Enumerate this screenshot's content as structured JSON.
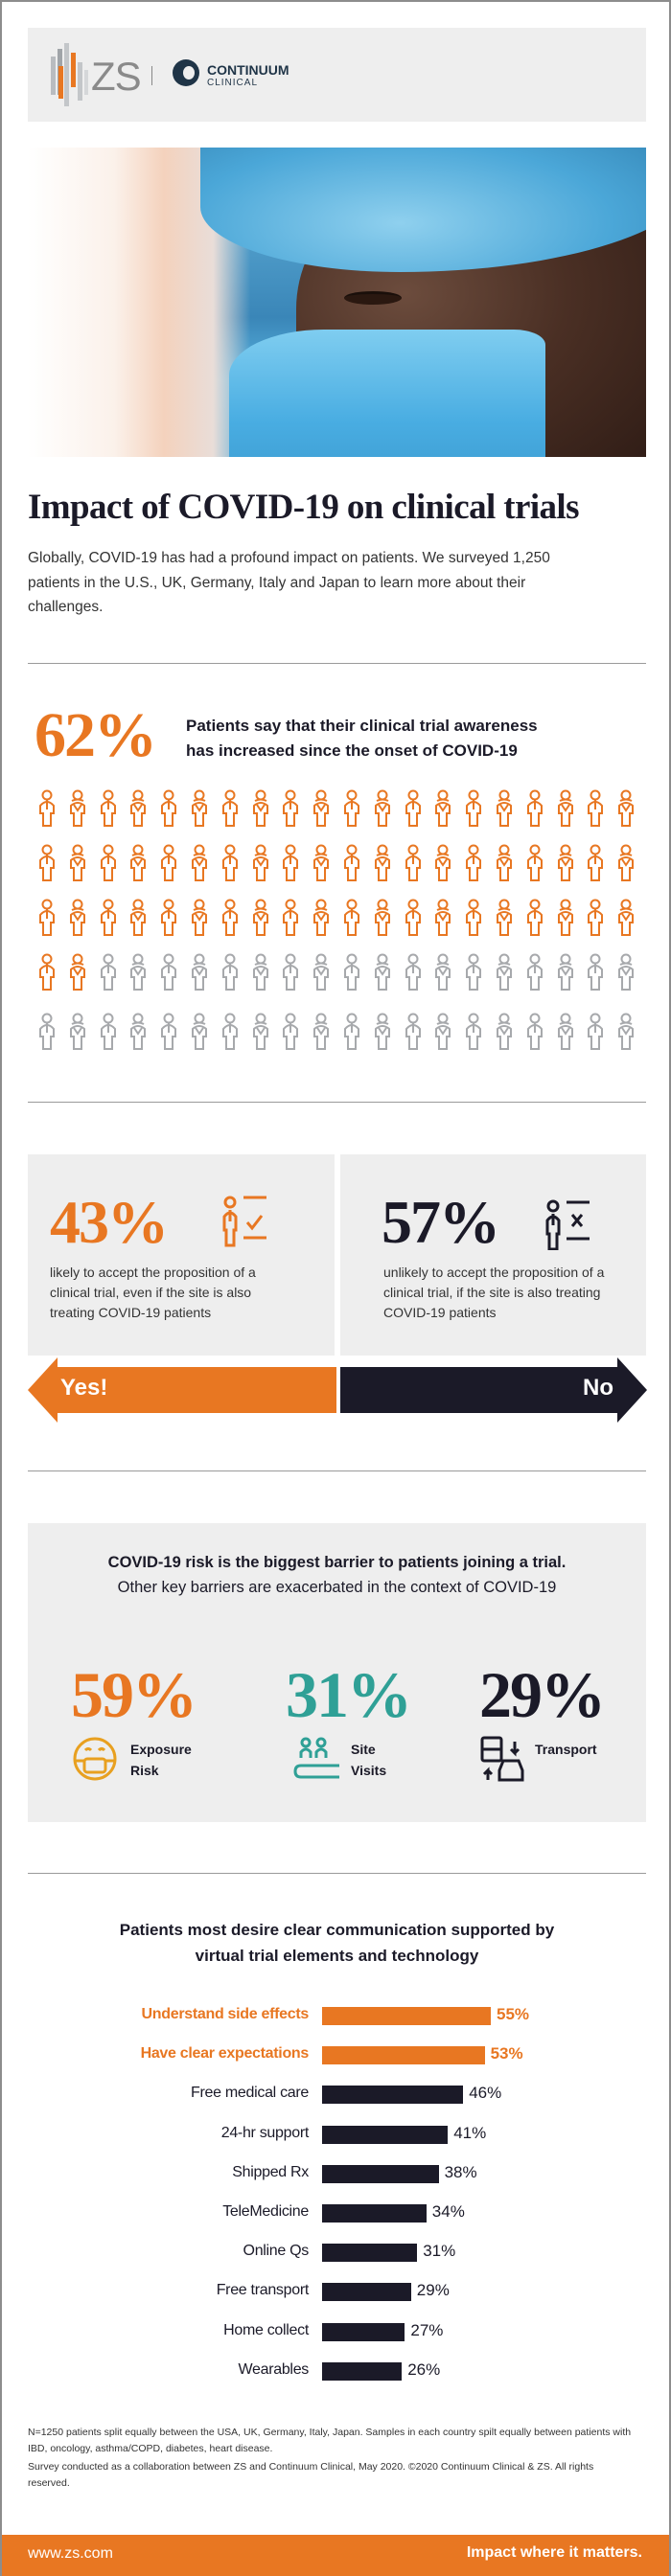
{
  "header": {
    "zs_logo_text": "ZS",
    "partner_name": "CONTINUUM",
    "partner_sub": "CLINICAL"
  },
  "title": "Impact of COVID-19 on clinical trials",
  "intro": "Globally, COVID-19 has had a profound impact on patients. We surveyed 1,250 patients in the U.S., UK, Germany, Italy and Japan to learn more about their challenges.",
  "awareness": {
    "percent": "62%",
    "text_line1": "Patients say that their clinical trial awareness",
    "text_line2": "has increased since the onset of COVID-19",
    "highlighted_count": 62,
    "total_count": 100
  },
  "acceptance": {
    "yes": {
      "percent": "43%",
      "text": "likely to accept the proposition of a clinical trial, even if the site is also treating COVID-19 patients",
      "label": "Yes!"
    },
    "no": {
      "percent": "57%",
      "text": "unlikely to accept the proposition of a clinical trial, if the site is also treating COVID-19 patients",
      "label": "No"
    }
  },
  "barriers": {
    "heading_bold": "COVID-19 risk is the biggest barrier to patients joining a trial.",
    "heading_regular": "Other key barriers are exacerbated in the context of COVID-19",
    "items": [
      {
        "percent": "59%",
        "label_1": "Exposure",
        "label_2": "Risk",
        "color": "#e87722"
      },
      {
        "percent": "31%",
        "label_1": "Site",
        "label_2": "Visits",
        "color": "#2fa096"
      },
      {
        "percent": "29%",
        "label_1": "Transport",
        "label_2": "",
        "color": "#1b1a28"
      }
    ]
  },
  "chart_data": {
    "type": "bar",
    "orientation": "horizontal",
    "title": "Patients most desire clear communication supported by virtual trial elements and technology",
    "title_line1": "Patients most desire clear communication supported by",
    "title_line2": "virtual trial elements and technology",
    "categories": [
      "Understand side effects",
      "Have clear expectations",
      "Free medical care",
      "24-hr support",
      "Shipped Rx",
      "TeleMedicine",
      "Online Qs",
      "Free transport",
      "Home collect",
      "Wearables"
    ],
    "values": [
      55,
      53,
      46,
      41,
      38,
      34,
      31,
      29,
      27,
      26
    ],
    "value_labels": [
      "55%",
      "53%",
      "46%",
      "41%",
      "38%",
      "34%",
      "31%",
      "29%",
      "27%",
      "26%"
    ],
    "highlighted": [
      true,
      true,
      false,
      false,
      false,
      false,
      false,
      false,
      false,
      false
    ],
    "colors": {
      "highlight": "#e87722",
      "default": "#1b1a28"
    },
    "xlabel": "",
    "ylabel": "",
    "xlim": [
      0,
      100
    ],
    "grid": false
  },
  "footnote": {
    "line1": "N=1250 patients split equally between the USA, UK, Germany, Italy, Japan. Samples in each country spilt equally between patients with IBD, oncology, asthma/COPD, diabetes, heart disease.",
    "line2": "Survey conducted as a collaboration between ZS and Continuum Clinical, May 2020. ©2020 Continuum Clinical & ZS. All rights reserved."
  },
  "footer": {
    "url": "www.zs.com",
    "tagline": "Impact where it matters."
  },
  "colors": {
    "orange": "#e87722",
    "navy": "#1b1a28",
    "teal": "#2fa096",
    "gray_icon": "#a7a9ac",
    "panel": "#eeeeee"
  }
}
